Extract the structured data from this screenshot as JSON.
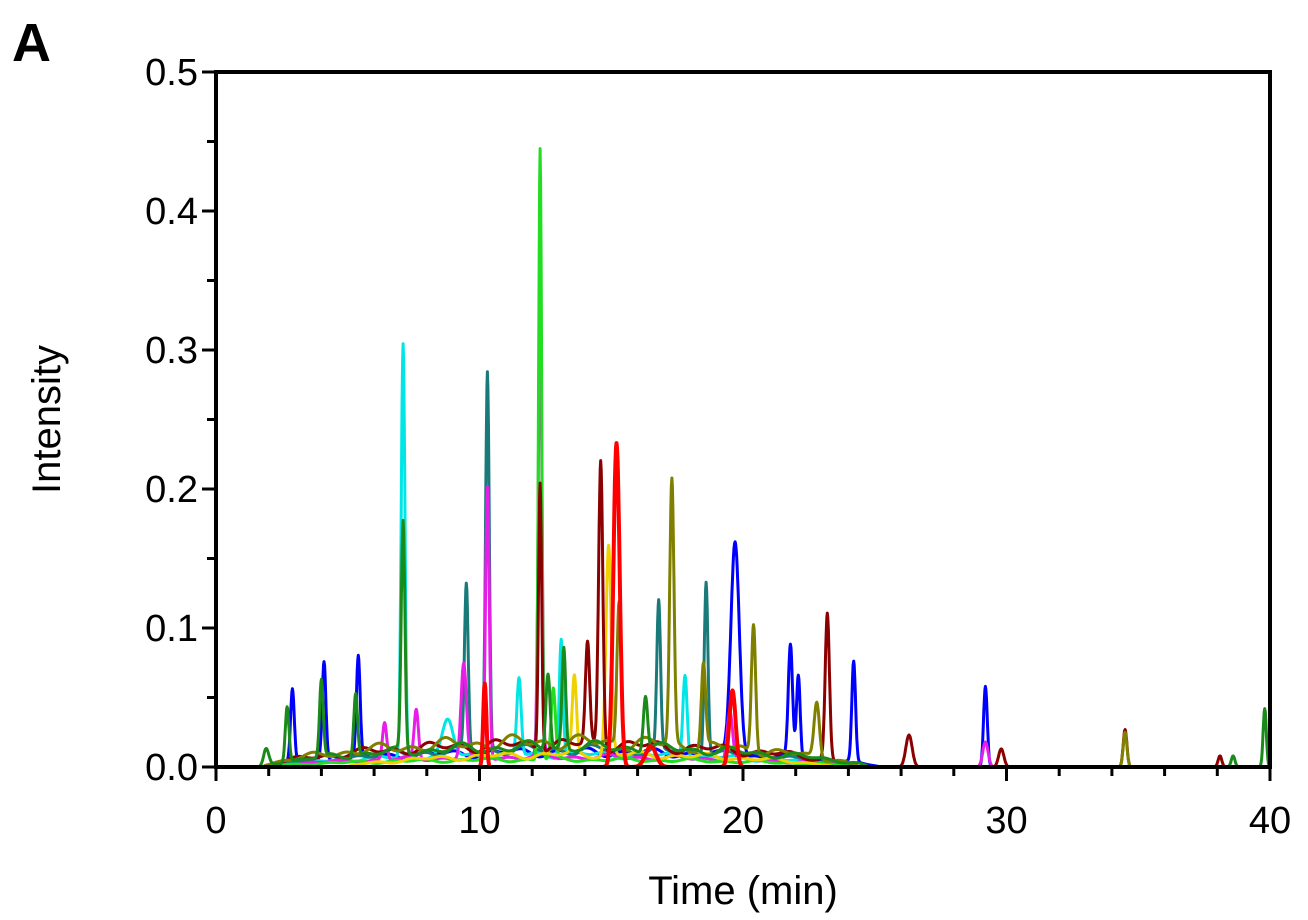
{
  "panel_label": "A",
  "chart_data": {
    "type": "line",
    "title": "",
    "xlabel": "Time (min)",
    "ylabel": "Intensity",
    "xlim": [
      0,
      40
    ],
    "ylim": [
      0,
      0.5
    ],
    "x_ticks": [
      0,
      10,
      20,
      30,
      40
    ],
    "x_tick_labels": [
      "0",
      "10",
      "20",
      "30",
      "40"
    ],
    "y_ticks": [
      0.0,
      0.1,
      0.2,
      0.3,
      0.4,
      0.5
    ],
    "y_tick_labels": [
      "0.0",
      "0.1",
      "0.2",
      "0.3",
      "0.4",
      "0.5"
    ],
    "grid": false,
    "legend": "none",
    "series": [
      {
        "color": "#0000ff",
        "baseline": {
          "start": 1.8,
          "end": 31,
          "level": 0.012
        },
        "peaks": [
          {
            "t": 2.9,
            "h": 0.052,
            "w": 0.07
          },
          {
            "t": 4.1,
            "h": 0.07,
            "w": 0.07
          },
          {
            "t": 5.4,
            "h": 0.072,
            "w": 0.07
          },
          {
            "t": 19.7,
            "h": 0.155,
            "w": 0.16
          },
          {
            "t": 21.8,
            "h": 0.08,
            "w": 0.08
          },
          {
            "t": 22.1,
            "h": 0.06,
            "w": 0.07
          },
          {
            "t": 24.2,
            "h": 0.072,
            "w": 0.07
          },
          {
            "t": 29.2,
            "h": 0.058,
            "w": 0.07
          }
        ]
      },
      {
        "color": "#00e5e5",
        "baseline": {
          "start": 1.8,
          "end": 30,
          "level": 0.01
        },
        "peaks": [
          {
            "t": 7.1,
            "h": 0.297,
            "w": 0.07
          },
          {
            "t": 8.8,
            "h": 0.025,
            "w": 0.2
          },
          {
            "t": 11.5,
            "h": 0.055,
            "w": 0.08
          },
          {
            "t": 13.1,
            "h": 0.085,
            "w": 0.07
          },
          {
            "t": 17.8,
            "h": 0.06,
            "w": 0.08
          }
        ]
      },
      {
        "color": "#1a7a7a",
        "baseline": {
          "start": 1.8,
          "end": 30,
          "level": 0.014
        },
        "peaks": [
          {
            "t": 9.5,
            "h": 0.119,
            "w": 0.07
          },
          {
            "t": 10.3,
            "h": 0.272,
            "w": 0.07
          },
          {
            "t": 16.8,
            "h": 0.106,
            "w": 0.07
          },
          {
            "t": 18.6,
            "h": 0.126,
            "w": 0.07
          }
        ]
      },
      {
        "color": "#e61ee6",
        "baseline": {
          "start": 1.8,
          "end": 30,
          "level": 0.008
        },
        "peaks": [
          {
            "t": 6.4,
            "h": 0.027,
            "w": 0.08
          },
          {
            "t": 7.6,
            "h": 0.035,
            "w": 0.08
          },
          {
            "t": 9.4,
            "h": 0.068,
            "w": 0.1
          },
          {
            "t": 10.3,
            "h": 0.195,
            "w": 0.07
          },
          {
            "t": 12.3,
            "h": 0.318,
            "w": 0.07
          },
          {
            "t": 19.5,
            "h": 0.035,
            "w": 0.1
          },
          {
            "t": 29.2,
            "h": 0.018,
            "w": 0.1
          }
        ]
      },
      {
        "color": "#22dd22",
        "baseline": {
          "start": 1.8,
          "end": 30,
          "level": 0.006
        },
        "peaks": [
          {
            "t": 12.3,
            "h": 0.44,
            "w": 0.06
          },
          {
            "t": 12.8,
            "h": 0.05,
            "w": 0.08
          }
        ]
      },
      {
        "color": "#f0d000",
        "baseline": {
          "start": 5,
          "end": 28,
          "level": 0.01
        },
        "peaks": [
          {
            "t": 13.6,
            "h": 0.055,
            "w": 0.08
          },
          {
            "t": 14.9,
            "h": 0.15,
            "w": 0.1
          }
        ]
      },
      {
        "color": "#8b0000",
        "baseline": {
          "start": 1.8,
          "end": 30,
          "level": 0.018
        },
        "peaks": [
          {
            "t": 12.3,
            "h": 0.193,
            "w": 0.06
          },
          {
            "t": 14.1,
            "h": 0.072,
            "w": 0.08
          },
          {
            "t": 14.6,
            "h": 0.206,
            "w": 0.08
          },
          {
            "t": 23.2,
            "h": 0.105,
            "w": 0.08
          },
          {
            "t": 26.3,
            "h": 0.023,
            "w": 0.12
          },
          {
            "t": 29.8,
            "h": 0.013,
            "w": 0.1
          },
          {
            "t": 34.5,
            "h": 0.027,
            "w": 0.07
          },
          {
            "t": 38.1,
            "h": 0.008,
            "w": 0.07
          }
        ]
      },
      {
        "color": "#808000",
        "baseline": {
          "start": 1.8,
          "end": 30,
          "level": 0.02
        },
        "peaks": [
          {
            "t": 15.3,
            "h": 0.105,
            "w": 0.08
          },
          {
            "t": 17.3,
            "h": 0.19,
            "w": 0.08
          },
          {
            "t": 18.5,
            "h": 0.06,
            "w": 0.08
          },
          {
            "t": 20.4,
            "h": 0.093,
            "w": 0.08
          },
          {
            "t": 22.8,
            "h": 0.04,
            "w": 0.1
          },
          {
            "t": 34.5,
            "h": 0.025,
            "w": 0.07
          }
        ]
      },
      {
        "color": "#1a8a1a",
        "baseline": {
          "start": 1.8,
          "end": 30.5,
          "level": 0.016
        },
        "peaks": [
          {
            "t": 1.9,
            "h": 0.012,
            "w": 0.1
          },
          {
            "t": 2.7,
            "h": 0.04,
            "w": 0.07
          },
          {
            "t": 4.0,
            "h": 0.055,
            "w": 0.07
          },
          {
            "t": 5.3,
            "h": 0.045,
            "w": 0.07
          },
          {
            "t": 7.1,
            "h": 0.165,
            "w": 0.07
          },
          {
            "t": 12.6,
            "h": 0.055,
            "w": 0.08
          },
          {
            "t": 13.2,
            "h": 0.072,
            "w": 0.07
          },
          {
            "t": 16.3,
            "h": 0.04,
            "w": 0.08
          },
          {
            "t": 38.6,
            "h": 0.008,
            "w": 0.07
          },
          {
            "t": 39.8,
            "h": 0.042,
            "w": 0.06
          }
        ]
      },
      {
        "color": "#ff0000",
        "baseline": {
          "start": 0,
          "end": 40,
          "level": 0.0
        },
        "peaks": [
          {
            "t": 10.2,
            "h": 0.06,
            "w": 0.06
          },
          {
            "t": 15.2,
            "h": 0.233,
            "w": 0.12
          },
          {
            "t": 19.6,
            "h": 0.055,
            "w": 0.12
          },
          {
            "t": 16.5,
            "h": 0.015,
            "w": 0.2
          }
        ]
      }
    ]
  }
}
